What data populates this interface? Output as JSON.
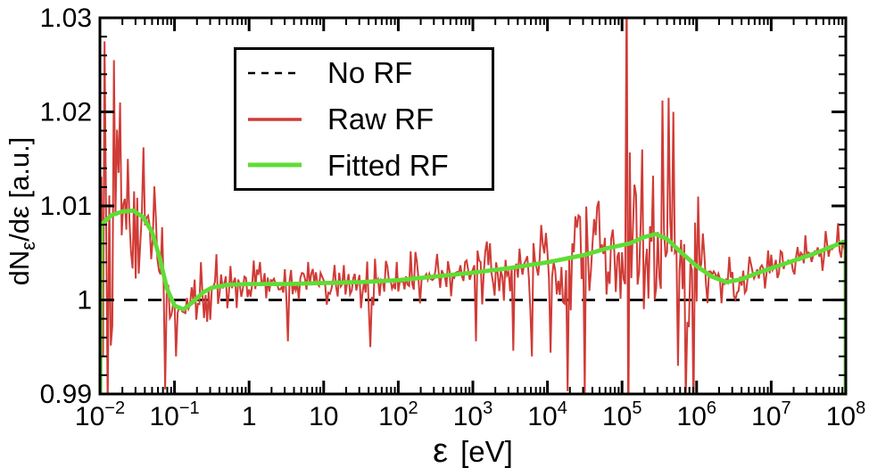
{
  "figure": {
    "background": "#ffffff"
  },
  "colors": {
    "no_rf": "#000000",
    "raw_rf": "#d03b36",
    "fitted_rf": "#5fdd35",
    "frame": "#000000",
    "text": "#000000"
  },
  "axes": {
    "x": {
      "label_symbol": "ε",
      "label_unit": "[eV]",
      "scale": "log",
      "min_exp": -2,
      "max_exp": 8,
      "tick_exponents": [
        -2,
        -1,
        0,
        1,
        2,
        3,
        4,
        5,
        6,
        7,
        8
      ],
      "minus_sign": "−"
    },
    "y": {
      "label_prefix": "dN",
      "label_sub": "ε",
      "label_rest": "/dε",
      "label_unit": " [a.u.]",
      "min": 0.99,
      "max": 1.03,
      "major_ticks": [
        {
          "value": 0.99,
          "label": "0.99"
        },
        {
          "value": 1.0,
          "label": "1"
        },
        {
          "value": 1.01,
          "label": "1.01"
        },
        {
          "value": 1.02,
          "label": "1.02"
        },
        {
          "value": 1.03,
          "label": "1.03"
        }
      ],
      "minor_step": 0.002
    }
  },
  "legend": {
    "items": [
      {
        "label": "No RF",
        "style": "dashed",
        "color_key": "no_rf"
      },
      {
        "label": "Raw RF",
        "style": "solid",
        "color_key": "raw_rf"
      },
      {
        "label": "Fitted RF",
        "style": "solid",
        "color_key": "fitted_rf"
      }
    ]
  },
  "chart_data": {
    "type": "line",
    "title": "",
    "xlabel": "ε [eV]",
    "ylabel": "dNε/dε [a.u.]",
    "xscale": "log",
    "xlim": [
      0.01,
      100000000
    ],
    "ylim": [
      0.99,
      1.03
    ],
    "grid": false,
    "legend_position": "upper-left-inside",
    "series": [
      {
        "name": "No RF",
        "kind": "hline",
        "y": 1.0,
        "line": "dashed",
        "color_key": "no_rf"
      },
      {
        "name": "Raw RF",
        "kind": "noisy-line",
        "color_key": "raw_rf",
        "points_per_decade": 48,
        "seed": 987613,
        "noise_envelope_logx_amp": [
          [
            -2.0,
            0.0155
          ],
          [
            -1.7,
            0.014
          ],
          [
            -1.5,
            0.009
          ],
          [
            -1.2,
            0.0052
          ],
          [
            -1.0,
            0.0042
          ],
          [
            -0.6,
            0.0038
          ],
          [
            -0.2,
            0.003
          ],
          [
            0.5,
            0.0028
          ],
          [
            1.5,
            0.0028
          ],
          [
            2.3,
            0.003
          ],
          [
            3.0,
            0.0036
          ],
          [
            3.6,
            0.0045
          ],
          [
            4.2,
            0.0055
          ],
          [
            4.7,
            0.007
          ],
          [
            5.0,
            0.0095
          ],
          [
            5.2,
            0.011
          ],
          [
            5.45,
            0.01
          ],
          [
            5.7,
            0.0092
          ],
          [
            5.95,
            0.0072
          ],
          [
            6.15,
            0.0045
          ],
          [
            6.35,
            0.003
          ],
          [
            6.6,
            0.0024
          ],
          [
            7.0,
            0.0021
          ],
          [
            7.5,
            0.0023
          ],
          [
            8.0,
            0.0028
          ]
        ],
        "spikes_logx_value": [
          [
            -1.93,
            1.0275
          ],
          [
            -1.89,
            0.9885
          ],
          [
            -1.81,
            1.0255
          ],
          [
            -1.73,
            1.021
          ],
          [
            -1.62,
            1.015
          ],
          [
            -1.12,
            0.9905
          ],
          [
            -0.98,
            0.994
          ],
          [
            0.52,
            0.9956
          ],
          [
            1.62,
            0.995
          ],
          [
            3.05,
            0.9956
          ],
          [
            3.55,
            0.9946
          ],
          [
            3.8,
            0.994
          ],
          [
            4.05,
            0.9944
          ],
          [
            4.28,
            0.9903
          ],
          [
            4.42,
            1.009
          ],
          [
            4.5,
            0.9899
          ],
          [
            4.62,
            1.0086
          ],
          [
            5.07,
            1.035
          ],
          [
            5.09,
            0.984
          ],
          [
            5.28,
            1.016
          ],
          [
            5.55,
            1.0212
          ],
          [
            5.62,
            1.0215
          ],
          [
            5.68,
            1.02
          ],
          [
            5.75,
            0.993
          ],
          [
            5.85,
            0.9895
          ],
          [
            5.95,
            0.9878
          ],
          [
            6.02,
            1.011
          ]
        ]
      },
      {
        "name": "Fitted RF",
        "kind": "smooth-line",
        "color_key": "fitted_rf",
        "points_logx_value": [
          [
            -2.0,
            0.988
          ],
          [
            -1.98,
            1.008
          ],
          [
            -1.85,
            1.009
          ],
          [
            -1.7,
            1.0094
          ],
          [
            -1.55,
            1.0095
          ],
          [
            -1.42,
            1.0088
          ],
          [
            -1.3,
            1.0072
          ],
          [
            -1.2,
            1.0045
          ],
          [
            -1.1,
            1.0012
          ],
          [
            -1.0,
            0.9994
          ],
          [
            -0.88,
            0.999
          ],
          [
            -0.75,
            0.9998
          ],
          [
            -0.62,
            1.0008
          ],
          [
            -0.5,
            1.0013
          ],
          [
            -0.3,
            1.0016
          ],
          [
            0.0,
            1.0017
          ],
          [
            0.5,
            1.0017
          ],
          [
            1.0,
            1.0018
          ],
          [
            1.5,
            1.0019
          ],
          [
            2.0,
            1.0021
          ],
          [
            2.5,
            1.0025
          ],
          [
            3.0,
            1.0029
          ],
          [
            3.5,
            1.0034
          ],
          [
            4.0,
            1.004
          ],
          [
            4.5,
            1.0048
          ],
          [
            4.8,
            1.0055
          ],
          [
            5.1,
            1.006
          ],
          [
            5.3,
            1.0067
          ],
          [
            5.45,
            1.007
          ],
          [
            5.6,
            1.0065
          ],
          [
            5.8,
            1.005
          ],
          [
            6.0,
            1.0036
          ],
          [
            6.2,
            1.0025
          ],
          [
            6.4,
            1.0019
          ],
          [
            6.6,
            1.0022
          ],
          [
            6.9,
            1.0031
          ],
          [
            7.2,
            1.0039
          ],
          [
            7.6,
            1.005
          ],
          [
            7.95,
            1.0061
          ],
          [
            8.0,
            1.0062
          ],
          [
            8.0,
            0.988
          ]
        ]
      }
    ]
  }
}
